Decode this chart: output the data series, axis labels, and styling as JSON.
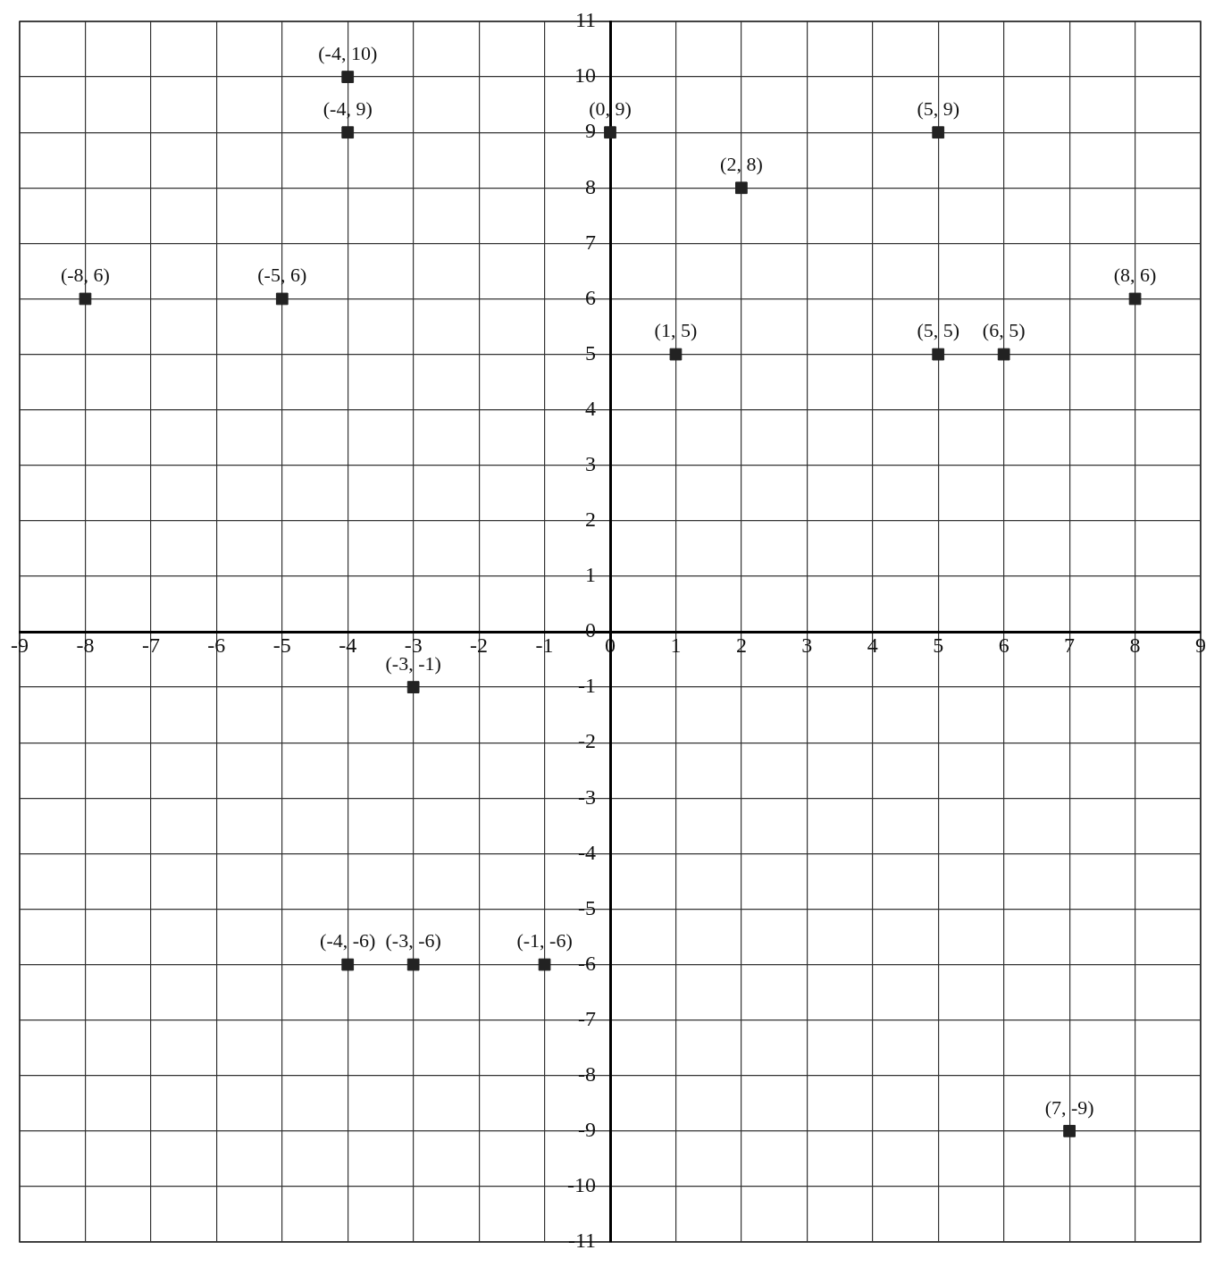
{
  "chart_data": {
    "type": "scatter",
    "x": [
      -4,
      -4,
      0,
      5,
      2,
      -8,
      -5,
      8,
      1,
      5,
      6,
      -3,
      -4,
      -3,
      -1,
      7
    ],
    "values": [
      10,
      9,
      9,
      9,
      8,
      6,
      6,
      6,
      5,
      5,
      5,
      -1,
      -6,
      -6,
      -6,
      -9
    ],
    "value_labels": [
      "(-4, 10)",
      "(-4, 9)",
      "(0, 9)",
      "(5, 9)",
      "(2, 8)",
      "(-8, 6)",
      "(-5, 6)",
      "(8, 6)",
      "(1, 5)",
      "(5, 5)",
      "(6, 5)",
      "(-3, -1)",
      "(-4, -6)",
      "(-3, -6)",
      "(-1, -6)",
      "(7, -9)"
    ],
    "color": "#222222",
    "marker": "square",
    "xlim": [
      -9,
      9
    ],
    "ylim": [
      -11,
      11
    ],
    "xticks": [
      -9,
      -8,
      -7,
      -6,
      -5,
      -4,
      -3,
      -2,
      -1,
      0,
      1,
      2,
      3,
      4,
      5,
      6,
      7,
      8,
      9
    ],
    "yticks": [
      -11,
      -10,
      -9,
      -8,
      -7,
      -6,
      -5,
      -4,
      -3,
      -2,
      -1,
      0,
      1,
      2,
      3,
      4,
      5,
      6,
      7,
      8,
      9,
      10,
      11
    ],
    "grid": true
  }
}
